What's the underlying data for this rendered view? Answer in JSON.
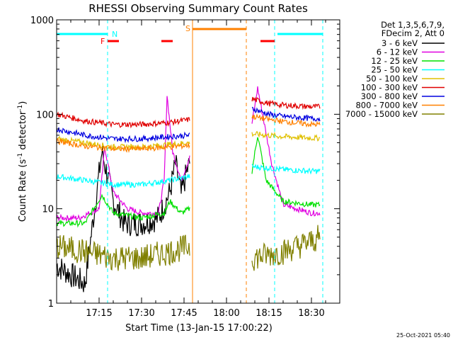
{
  "chart_data": {
    "type": "line",
    "title": "RHESSI Observing Summary Count Rates",
    "xlabel": "Start Time (13-Jan-15 17:00:22)",
    "ylabel_main": "Count Rate (s",
    "ylabel_sup1": "-1",
    "ylabel_mid": " detector",
    "ylabel_sup2": "-1",
    "ylabel_end": ")",
    "yscale": "log",
    "ylim": [
      1,
      1000
    ],
    "xlim_minutes": [
      0,
      100
    ],
    "x_ticks": [
      {
        "minute": 15,
        "label": "17:15"
      },
      {
        "minute": 30,
        "label": "17:30"
      },
      {
        "minute": 45,
        "label": "17:45"
      },
      {
        "minute": 60,
        "label": "18:00"
      },
      {
        "minute": 75,
        "label": "18:15"
      },
      {
        "minute": 90,
        "label": "18:30"
      }
    ],
    "y_ticks": [
      {
        "value": 1,
        "label": "1"
      },
      {
        "value": 10,
        "label": "10"
      },
      {
        "value": 100,
        "label": "100"
      },
      {
        "value": 1000,
        "label": "1000"
      }
    ],
    "legend_header": [
      "Det 1,3,5,6,7,9,",
      "FDecim 2, Att 0"
    ],
    "legend_position": "right",
    "series": [
      {
        "name": "3 - 6 keV",
        "color": "#000000",
        "values": [
          [
            0,
            2.5
          ],
          [
            10,
            1.6
          ],
          [
            16,
            40
          ],
          [
            20,
            12
          ],
          [
            24,
            7
          ],
          [
            30,
            7
          ],
          [
            36,
            8
          ],
          [
            40,
            15
          ],
          [
            42,
            30
          ],
          [
            44,
            14
          ],
          [
            46,
            25
          ],
          [
            47,
            30
          ]
        ]
      },
      {
        "name": "6 - 12 keV",
        "color": "#e000e0",
        "values": [
          [
            0,
            8
          ],
          [
            8,
            8
          ],
          [
            15,
            10
          ],
          [
            17,
            45
          ],
          [
            20,
            15
          ],
          [
            25,
            10
          ],
          [
            30,
            9
          ],
          [
            36,
            9
          ],
          [
            38,
            20
          ],
          [
            39,
            160
          ],
          [
            41,
            40
          ],
          [
            44,
            20
          ],
          [
            47,
            35
          ],
          [
            69,
            80
          ],
          [
            71,
            190
          ],
          [
            73,
            90
          ],
          [
            76,
            30
          ],
          [
            80,
            11
          ],
          [
            90,
            9
          ],
          [
            93,
            9
          ]
        ]
      },
      {
        "name": "12 - 25 keV",
        "color": "#00e000",
        "values": [
          [
            0,
            7
          ],
          [
            10,
            7
          ],
          [
            16,
            14
          ],
          [
            20,
            9
          ],
          [
            30,
            8
          ],
          [
            38,
            9
          ],
          [
            40,
            12
          ],
          [
            44,
            9
          ],
          [
            47,
            10
          ],
          [
            69,
            25
          ],
          [
            71,
            60
          ],
          [
            74,
            20
          ],
          [
            80,
            12
          ],
          [
            90,
            11
          ],
          [
            93,
            11
          ]
        ]
      },
      {
        "name": "25 - 50 keV",
        "color": "#00ffff",
        "values": [
          [
            0,
            22
          ],
          [
            10,
            20
          ],
          [
            20,
            18
          ],
          [
            30,
            18
          ],
          [
            40,
            20
          ],
          [
            47,
            22
          ],
          [
            69,
            28
          ],
          [
            80,
            26
          ],
          [
            90,
            25
          ],
          [
            93,
            25
          ]
        ]
      },
      {
        "name": "50 - 100 keV",
        "color": "#e0c000",
        "values": [
          [
            0,
            55
          ],
          [
            10,
            50
          ],
          [
            20,
            45
          ],
          [
            30,
            45
          ],
          [
            40,
            48
          ],
          [
            47,
            50
          ],
          [
            69,
            62
          ],
          [
            80,
            58
          ],
          [
            90,
            56
          ],
          [
            93,
            56
          ]
        ]
      },
      {
        "name": "100 - 300 keV",
        "color": "#e00000",
        "values": [
          [
            0,
            100
          ],
          [
            10,
            85
          ],
          [
            20,
            78
          ],
          [
            30,
            78
          ],
          [
            40,
            82
          ],
          [
            47,
            88
          ],
          [
            69,
            145
          ],
          [
            75,
            130
          ],
          [
            80,
            125
          ],
          [
            90,
            120
          ],
          [
            93,
            120
          ]
        ]
      },
      {
        "name": "300 - 800 keV",
        "color": "#0000e0",
        "values": [
          [
            0,
            70
          ],
          [
            10,
            60
          ],
          [
            20,
            55
          ],
          [
            30,
            55
          ],
          [
            40,
            58
          ],
          [
            47,
            60
          ],
          [
            69,
            115
          ],
          [
            75,
            100
          ],
          [
            80,
            95
          ],
          [
            90,
            90
          ],
          [
            93,
            90
          ]
        ]
      },
      {
        "name": "800 - 7000 keV",
        "color": "#ff8000",
        "values": [
          [
            0,
            52
          ],
          [
            10,
            46
          ],
          [
            20,
            43
          ],
          [
            30,
            43
          ],
          [
            40,
            45
          ],
          [
            47,
            47
          ],
          [
            69,
            95
          ],
          [
            75,
            88
          ],
          [
            80,
            84
          ],
          [
            90,
            78
          ],
          [
            93,
            78
          ]
        ]
      },
      {
        "name": "7000 - 15000 keV",
        "color": "#808000",
        "values": [
          [
            0,
            4
          ],
          [
            10,
            3.5
          ],
          [
            20,
            3
          ],
          [
            30,
            3
          ],
          [
            40,
            3.5
          ],
          [
            47,
            4
          ],
          [
            69,
            3
          ],
          [
            80,
            3.5
          ],
          [
            90,
            4.5
          ],
          [
            93,
            5
          ]
        ]
      }
    ],
    "annotations": [
      {
        "label": "N",
        "color": "#00ffff",
        "lines": [
          [
            0,
            18
          ]
        ],
        "line_minutes": [
          18,
          77,
          94
        ]
      },
      {
        "label": "F",
        "color": "#ff0000",
        "segments": [
          [
            18,
            22
          ],
          [
            37,
            41
          ],
          [
            72,
            77
          ]
        ]
      },
      {
        "label": "S",
        "color": "#ff8000",
        "segments": [
          [
            48,
            67
          ]
        ],
        "line_minutes": [
          48,
          67
        ]
      }
    ],
    "night_segments": [
      [
        0,
        18
      ],
      [
        78,
        94
      ]
    ],
    "footer_stamp": "25-Oct-2021 05:40"
  }
}
